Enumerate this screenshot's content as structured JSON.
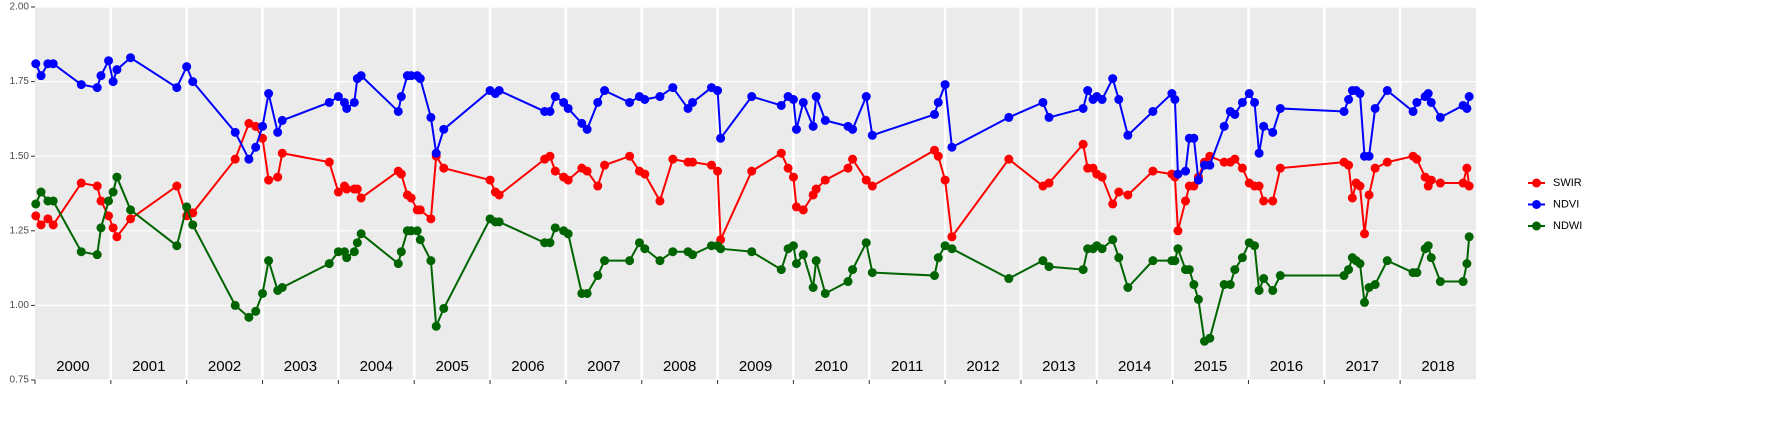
{
  "chart_data": {
    "type": "line",
    "x": [
      2000.01,
      2000.08,
      2000.17,
      2000.24,
      2000.61,
      2000.82,
      2000.87,
      2000.97,
      2001.03,
      2001.08,
      2001.26,
      2001.87,
      2002.0,
      2002.08,
      2002.64,
      2002.82,
      2002.91,
      2003.0,
      2003.08,
      2003.2,
      2003.26,
      2003.88,
      2004.0,
      2004.08,
      2004.11,
      2004.21,
      2004.25,
      2004.3,
      2004.79,
      2004.83,
      2004.91,
      2004.96,
      2005.04,
      2005.08,
      2005.22,
      2005.29,
      2005.39,
      2006.0,
      2006.07,
      2006.12,
      2006.72,
      2006.79,
      2006.86,
      2006.97,
      2007.03,
      2007.21,
      2007.28,
      2007.42,
      2007.51,
      2007.84,
      2007.97,
      2008.04,
      2008.24,
      2008.41,
      2008.61,
      2008.67,
      2008.92,
      2009.0,
      2009.04,
      2009.45,
      2009.84,
      2009.93,
      2010.0,
      2010.04,
      2010.13,
      2010.26,
      2010.3,
      2010.42,
      2010.72,
      2010.78,
      2010.96,
      2011.04,
      2011.86,
      2011.91,
      2012.0,
      2012.09,
      2012.84,
      2013.29,
      2013.37,
      2013.82,
      2013.88,
      2013.95,
      2014.0,
      2014.07,
      2014.21,
      2014.29,
      2014.41,
      2014.74,
      2014.99,
      2015.03,
      2015.07,
      2015.17,
      2015.22,
      2015.28,
      2015.34,
      2015.42,
      2015.49,
      2015.68,
      2015.76,
      2015.82,
      2015.92,
      2016.01,
      2016.08,
      2016.14,
      2016.2,
      2016.32,
      2016.42,
      2017.26,
      2017.32,
      2017.37,
      2017.42,
      2017.47,
      2017.53,
      2017.59,
      2017.67,
      2017.83,
      2018.17,
      2018.22,
      2018.33,
      2018.37,
      2018.41,
      2018.53,
      2018.83,
      2018.88,
      2018.91
    ],
    "series": [
      {
        "name": "SWIR",
        "color": "#ff0000",
        "values": [
          1.3,
          1.27,
          1.29,
          1.27,
          1.41,
          1.4,
          1.35,
          1.3,
          1.26,
          1.23,
          1.29,
          1.4,
          1.3,
          1.31,
          1.49,
          1.61,
          1.6,
          1.56,
          1.42,
          1.43,
          1.51,
          1.48,
          1.38,
          1.4,
          1.39,
          1.39,
          1.39,
          1.36,
          1.45,
          1.44,
          1.37,
          1.36,
          1.32,
          1.32,
          1.29,
          1.5,
          1.46,
          1.42,
          1.38,
          1.37,
          1.49,
          1.5,
          1.45,
          1.43,
          1.42,
          1.46,
          1.45,
          1.4,
          1.47,
          1.5,
          1.45,
          1.44,
          1.35,
          1.49,
          1.48,
          1.48,
          1.47,
          1.45,
          1.22,
          1.45,
          1.51,
          1.46,
          1.43,
          1.33,
          1.32,
          1.37,
          1.39,
          1.42,
          1.46,
          1.49,
          1.42,
          1.4,
          1.52,
          1.5,
          1.42,
          1.23,
          1.49,
          1.4,
          1.41,
          1.54,
          1.46,
          1.46,
          1.44,
          1.43,
          1.34,
          1.38,
          1.37,
          1.45,
          1.44,
          1.43,
          1.25,
          1.35,
          1.4,
          1.4,
          1.43,
          1.48,
          1.5,
          1.48,
          1.48,
          1.49,
          1.46,
          1.41,
          1.4,
          1.4,
          1.35,
          1.35,
          1.46,
          1.48,
          1.47,
          1.36,
          1.41,
          1.4,
          1.24,
          1.37,
          1.46,
          1.48,
          1.5,
          1.49,
          1.43,
          1.4,
          1.42,
          1.41,
          1.41,
          1.46,
          1.4
        ]
      },
      {
        "name": "NDVI",
        "color": "#0000ff",
        "values": [
          1.81,
          1.77,
          1.81,
          1.81,
          1.74,
          1.73,
          1.77,
          1.82,
          1.75,
          1.79,
          1.83,
          1.73,
          1.8,
          1.75,
          1.58,
          1.49,
          1.53,
          1.6,
          1.71,
          1.58,
          1.62,
          1.68,
          1.7,
          1.68,
          1.66,
          1.68,
          1.76,
          1.77,
          1.65,
          1.7,
          1.77,
          1.77,
          1.77,
          1.76,
          1.63,
          1.51,
          1.59,
          1.72,
          1.71,
          1.72,
          1.65,
          1.65,
          1.7,
          1.68,
          1.66,
          1.61,
          1.59,
          1.68,
          1.72,
          1.68,
          1.7,
          1.69,
          1.7,
          1.73,
          1.66,
          1.68,
          1.73,
          1.72,
          1.56,
          1.7,
          1.67,
          1.7,
          1.69,
          1.59,
          1.68,
          1.6,
          1.7,
          1.62,
          1.6,
          1.59,
          1.7,
          1.57,
          1.64,
          1.68,
          1.74,
          1.53,
          1.63,
          1.68,
          1.63,
          1.66,
          1.72,
          1.69,
          1.7,
          1.69,
          1.76,
          1.69,
          1.57,
          1.65,
          1.71,
          1.69,
          1.44,
          1.45,
          1.56,
          1.56,
          1.42,
          1.47,
          1.47,
          1.6,
          1.65,
          1.64,
          1.68,
          1.71,
          1.68,
          1.51,
          1.6,
          1.58,
          1.66,
          1.65,
          1.69,
          1.72,
          1.72,
          1.71,
          1.5,
          1.5,
          1.66,
          1.72,
          1.65,
          1.68,
          1.7,
          1.71,
          1.68,
          1.63,
          1.67,
          1.66,
          1.7
        ]
      },
      {
        "name": "NDWI",
        "color": "#006400",
        "values": [
          1.34,
          1.38,
          1.35,
          1.35,
          1.18,
          1.17,
          1.26,
          1.35,
          1.38,
          1.43,
          1.32,
          1.2,
          1.33,
          1.27,
          1.0,
          0.96,
          0.98,
          1.04,
          1.15,
          1.05,
          1.06,
          1.14,
          1.18,
          1.18,
          1.16,
          1.18,
          1.21,
          1.24,
          1.14,
          1.18,
          1.25,
          1.25,
          1.25,
          1.22,
          1.15,
          0.93,
          0.99,
          1.29,
          1.28,
          1.28,
          1.21,
          1.21,
          1.26,
          1.25,
          1.24,
          1.04,
          1.04,
          1.1,
          1.15,
          1.15,
          1.21,
          1.19,
          1.15,
          1.18,
          1.18,
          1.17,
          1.2,
          1.2,
          1.19,
          1.18,
          1.12,
          1.19,
          1.2,
          1.14,
          1.17,
          1.06,
          1.15,
          1.04,
          1.08,
          1.12,
          1.21,
          1.11,
          1.1,
          1.16,
          1.2,
          1.19,
          1.09,
          1.15,
          1.13,
          1.12,
          1.19,
          1.19,
          1.2,
          1.19,
          1.22,
          1.16,
          1.06,
          1.15,
          1.15,
          1.15,
          1.19,
          1.12,
          1.12,
          1.07,
          1.02,
          0.88,
          0.89,
          1.07,
          1.07,
          1.12,
          1.16,
          1.21,
          1.2,
          1.05,
          1.09,
          1.05,
          1.1,
          1.1,
          1.12,
          1.16,
          1.15,
          1.14,
          1.01,
          1.06,
          1.07,
          1.15,
          1.11,
          1.11,
          1.19,
          1.2,
          1.16,
          1.08,
          1.08,
          1.14,
          1.23
        ]
      }
    ],
    "years": [
      2000,
      2001,
      2002,
      2003,
      2004,
      2005,
      2006,
      2007,
      2008,
      2009,
      2010,
      2011,
      2012,
      2013,
      2014,
      2015,
      2016,
      2017,
      2018
    ],
    "xlim": [
      2000,
      2019
    ],
    "ylim": [
      0.75,
      2.0
    ],
    "yticks": [
      {
        "value": 0.75,
        "label": "0.75"
      },
      {
        "value": 1,
        "label": "1.00"
      },
      {
        "value": 1.25,
        "label": "1.25"
      },
      {
        "value": 1.5,
        "label": "1.50"
      },
      {
        "value": 1.75,
        "label": "1.75"
      },
      {
        "value": 2,
        "label": "2.00"
      }
    ],
    "grid": true,
    "legend": "right"
  }
}
